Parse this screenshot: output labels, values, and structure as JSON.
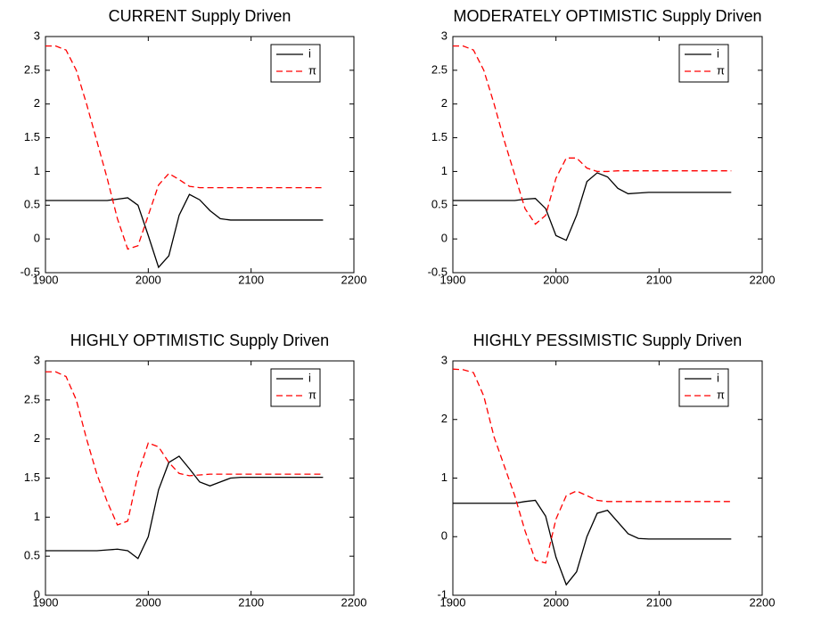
{
  "chart_data": [
    {
      "type": "line",
      "title": "CURRENT Supply Driven",
      "x": [
        1900,
        1910,
        1920,
        1930,
        1940,
        1950,
        1960,
        1970,
        1980,
        1990,
        2000,
        2010,
        2020,
        2030,
        2040,
        2050,
        2060,
        2070,
        2080,
        2090,
        2100,
        2110,
        2120,
        2130,
        2140,
        2150,
        2160,
        2170
      ],
      "series": [
        {
          "name": "i",
          "color": "#000000",
          "linestyle": "solid",
          "values": [
            0.57,
            0.57,
            0.57,
            0.57,
            0.57,
            0.57,
            0.57,
            0.59,
            0.61,
            0.5,
            0.05,
            -0.42,
            -0.25,
            0.35,
            0.66,
            0.58,
            0.42,
            0.3,
            0.28,
            0.28,
            0.28,
            0.28,
            0.28,
            0.28,
            0.28,
            0.28,
            0.28,
            0.28
          ]
        },
        {
          "name": "π",
          "color": "#ff0000",
          "linestyle": "dashed",
          "values": [
            2.86,
            2.86,
            2.8,
            2.5,
            2.0,
            1.45,
            0.9,
            0.3,
            -0.15,
            -0.1,
            0.35,
            0.8,
            0.97,
            0.88,
            0.78,
            0.76,
            0.76,
            0.76,
            0.76,
            0.76,
            0.76,
            0.76,
            0.76,
            0.76,
            0.76,
            0.76,
            0.76,
            0.76
          ]
        }
      ],
      "xlim": [
        1900,
        2200
      ],
      "xticks": [
        1900,
        2000,
        2100,
        2200
      ],
      "ylim": [
        -0.5,
        3
      ],
      "yticks": [
        -0.5,
        0,
        0.5,
        1,
        1.5,
        2,
        2.5,
        3
      ],
      "grid": false,
      "legend": "upper right"
    },
    {
      "type": "line",
      "title": "MODERATELY OPTIMISTIC Supply Driven",
      "x": [
        1900,
        1910,
        1920,
        1930,
        1940,
        1950,
        1960,
        1970,
        1980,
        1990,
        2000,
        2010,
        2020,
        2030,
        2040,
        2050,
        2060,
        2070,
        2080,
        2090,
        2100,
        2110,
        2120,
        2130,
        2140,
        2150,
        2160,
        2170
      ],
      "series": [
        {
          "name": "i",
          "color": "#000000",
          "linestyle": "solid",
          "values": [
            0.57,
            0.57,
            0.57,
            0.57,
            0.57,
            0.57,
            0.57,
            0.59,
            0.6,
            0.45,
            0.05,
            -0.02,
            0.35,
            0.85,
            0.98,
            0.92,
            0.75,
            0.67,
            0.68,
            0.69,
            0.69,
            0.69,
            0.69,
            0.69,
            0.69,
            0.69,
            0.69,
            0.69
          ]
        },
        {
          "name": "π",
          "color": "#ff0000",
          "linestyle": "dashed",
          "values": [
            2.86,
            2.86,
            2.8,
            2.5,
            2.0,
            1.45,
            0.95,
            0.45,
            0.22,
            0.35,
            0.9,
            1.2,
            1.2,
            1.05,
            1.0,
            1.0,
            1.01,
            1.01,
            1.01,
            1.01,
            1.01,
            1.01,
            1.01,
            1.01,
            1.01,
            1.01,
            1.01,
            1.01
          ]
        }
      ],
      "xlim": [
        1900,
        2200
      ],
      "xticks": [
        1900,
        2000,
        2100,
        2200
      ],
      "ylim": [
        -0.5,
        3
      ],
      "yticks": [
        -0.5,
        0,
        0.5,
        1,
        1.5,
        2,
        2.5,
        3
      ],
      "grid": false,
      "legend": "upper right"
    },
    {
      "type": "line",
      "title": "HIGHLY OPTIMISTIC Supply Driven",
      "x": [
        1900,
        1910,
        1920,
        1930,
        1940,
        1950,
        1960,
        1970,
        1980,
        1990,
        2000,
        2010,
        2020,
        2030,
        2040,
        2050,
        2060,
        2070,
        2080,
        2090,
        2100,
        2110,
        2120,
        2130,
        2140,
        2150,
        2160,
        2170
      ],
      "series": [
        {
          "name": "i",
          "color": "#000000",
          "linestyle": "solid",
          "values": [
            0.57,
            0.57,
            0.57,
            0.57,
            0.57,
            0.57,
            0.58,
            0.59,
            0.57,
            0.47,
            0.75,
            1.35,
            1.7,
            1.78,
            1.62,
            1.45,
            1.4,
            1.45,
            1.5,
            1.51,
            1.51,
            1.51,
            1.51,
            1.51,
            1.51,
            1.51,
            1.51,
            1.51
          ]
        },
        {
          "name": "π",
          "color": "#ff0000",
          "linestyle": "dashed",
          "values": [
            2.86,
            2.86,
            2.8,
            2.5,
            2.0,
            1.55,
            1.2,
            0.9,
            0.95,
            1.55,
            1.95,
            1.9,
            1.7,
            1.56,
            1.53,
            1.54,
            1.55,
            1.55,
            1.55,
            1.55,
            1.55,
            1.55,
            1.55,
            1.55,
            1.55,
            1.55,
            1.55,
            1.55
          ]
        }
      ],
      "xlim": [
        1900,
        2200
      ],
      "xticks": [
        1900,
        2000,
        2100,
        2200
      ],
      "ylim": [
        0,
        3
      ],
      "yticks": [
        0,
        0.5,
        1,
        1.5,
        2,
        2.5,
        3
      ],
      "grid": false,
      "legend": "upper right"
    },
    {
      "type": "line",
      "title": "HIGHLY PESSIMISTIC Supply Driven",
      "x": [
        1900,
        1910,
        1920,
        1930,
        1940,
        1950,
        1960,
        1970,
        1980,
        1990,
        2000,
        2010,
        2020,
        2030,
        2040,
        2050,
        2060,
        2070,
        2080,
        2090,
        2100,
        2110,
        2120,
        2130,
        2140,
        2150,
        2160,
        2170
      ],
      "series": [
        {
          "name": "i",
          "color": "#000000",
          "linestyle": "solid",
          "values": [
            0.57,
            0.57,
            0.57,
            0.57,
            0.57,
            0.57,
            0.57,
            0.6,
            0.62,
            0.35,
            -0.35,
            -0.82,
            -0.6,
            0.0,
            0.4,
            0.45,
            0.25,
            0.05,
            -0.03,
            -0.04,
            -0.04,
            -0.04,
            -0.04,
            -0.04,
            -0.04,
            -0.04,
            -0.04,
            -0.04
          ]
        },
        {
          "name": "π",
          "color": "#ff0000",
          "linestyle": "dashed",
          "values": [
            2.86,
            2.85,
            2.8,
            2.4,
            1.7,
            1.2,
            0.7,
            0.1,
            -0.4,
            -0.45,
            0.3,
            0.7,
            0.78,
            0.7,
            0.62,
            0.6,
            0.6,
            0.6,
            0.6,
            0.6,
            0.6,
            0.6,
            0.6,
            0.6,
            0.6,
            0.6,
            0.6,
            0.6
          ]
        }
      ],
      "xlim": [
        1900,
        2200
      ],
      "xticks": [
        1900,
        2000,
        2100,
        2200
      ],
      "ylim": [
        -1,
        3
      ],
      "yticks": [
        -1,
        0,
        1,
        2,
        3
      ],
      "grid": false,
      "legend": "upper right"
    }
  ]
}
